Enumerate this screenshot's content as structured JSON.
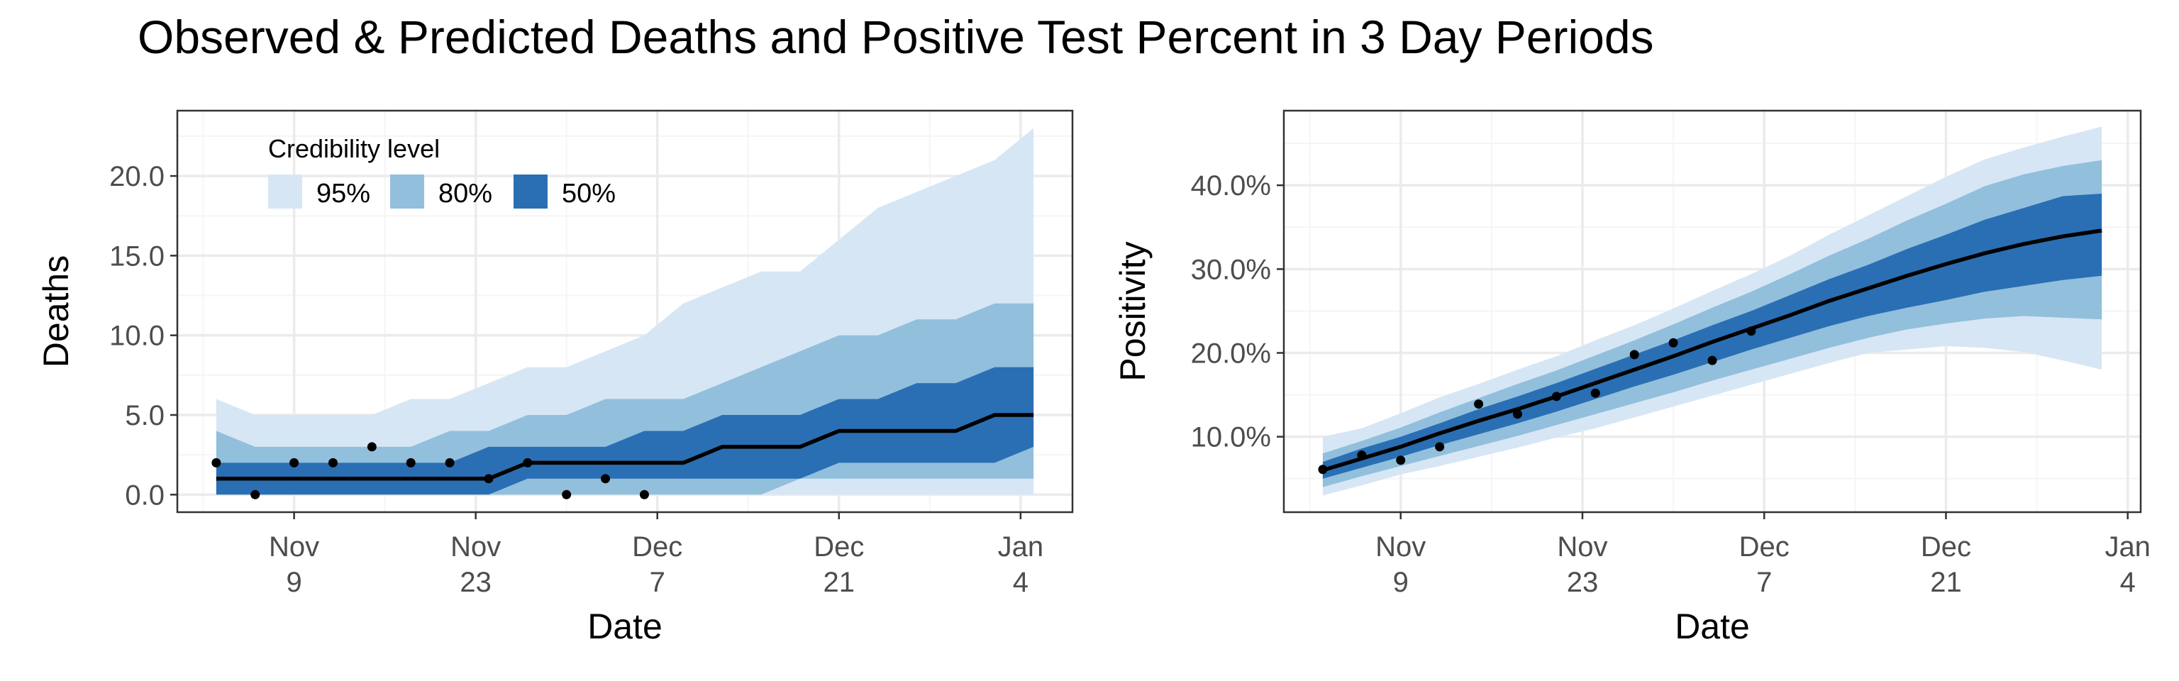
{
  "title": "Observed & Predicted Deaths and Positive Test Percent in 3 Day Periods",
  "colors": {
    "band95": "#d6e6f4",
    "band80": "#92bfdc",
    "band50": "#2a6fb3",
    "median_line": "#000000",
    "points": "#000000",
    "grid_major": "#ebebeb",
    "grid_minor": "#f5f5f5",
    "panel_border": "#333333"
  },
  "legend": {
    "title": "Credibility level",
    "items": [
      {
        "label": "95%",
        "color": "#d6e6f4"
      },
      {
        "label": "80%",
        "color": "#92bfdc"
      },
      {
        "label": "50%",
        "color": "#2a6fb3"
      }
    ]
  },
  "chart_data": [
    {
      "type": "area",
      "xlabel": "Date",
      "ylabel": "Deaths",
      "x_ticks": [
        {
          "date": "2020-11-09",
          "line1": "Nov",
          "line2": "9"
        },
        {
          "date": "2020-11-23",
          "line1": "Nov",
          "line2": "23"
        },
        {
          "date": "2020-12-07",
          "line1": "Dec",
          "line2": "7"
        },
        {
          "date": "2020-12-21",
          "line1": "Dec",
          "line2": "21"
        },
        {
          "date": "2021-01-04",
          "line1": "Jan",
          "line2": "4"
        }
      ],
      "y_ticks": [
        0,
        5,
        10,
        15,
        20
      ],
      "y_tick_labels": [
        "0.0",
        "5.0",
        "10.0",
        "15.0",
        "20.0"
      ],
      "xlim": [
        "2020-10-31",
        "2021-01-08"
      ],
      "ylim": [
        -1.1,
        24.1
      ],
      "grid": true,
      "legend_position": "top-left inside",
      "forecast": {
        "dates": [
          "2020-11-03",
          "2020-11-06",
          "2020-11-09",
          "2020-11-12",
          "2020-11-15",
          "2020-11-18",
          "2020-11-21",
          "2020-11-24",
          "2020-11-27",
          "2020-11-30",
          "2020-12-03",
          "2020-12-06",
          "2020-12-09",
          "2020-12-12",
          "2020-12-15",
          "2020-12-18",
          "2020-12-21",
          "2020-12-24",
          "2020-12-27",
          "2020-12-30",
          "2021-01-02",
          "2021-01-05"
        ],
        "median": [
          1,
          1,
          1,
          1,
          1,
          1,
          1,
          1,
          2,
          2,
          2,
          2,
          2,
          3,
          3,
          3,
          4,
          4,
          4,
          4,
          5,
          5
        ],
        "lower50": [
          0,
          0,
          0,
          0,
          0,
          0,
          0,
          0,
          1,
          1,
          1,
          1,
          1,
          1,
          1,
          1,
          2,
          2,
          2,
          2,
          2,
          3
        ],
        "upper50": [
          2,
          2,
          2,
          2,
          2,
          2,
          2,
          3,
          3,
          3,
          3,
          4,
          4,
          5,
          5,
          5,
          6,
          6,
          7,
          7,
          8,
          8
        ],
        "lower80": [
          0,
          0,
          0,
          0,
          0,
          0,
          0,
          0,
          0,
          0,
          0,
          0,
          0,
          0,
          0,
          1,
          1,
          1,
          1,
          1,
          1,
          1
        ],
        "upper80": [
          4,
          3,
          3,
          3,
          3,
          3,
          4,
          4,
          5,
          5,
          6,
          6,
          6,
          7,
          8,
          9,
          10,
          10,
          11,
          11,
          12,
          12
        ],
        "lower95": [
          0,
          0,
          0,
          0,
          0,
          0,
          0,
          0,
          0,
          0,
          0,
          0,
          0,
          0,
          0,
          0,
          0,
          0,
          0,
          0,
          0,
          0
        ],
        "upper95": [
          6,
          5,
          5,
          5,
          5,
          6,
          6,
          7,
          8,
          8,
          9,
          10,
          12,
          13,
          14,
          14,
          16,
          18,
          19,
          20,
          21,
          23
        ]
      },
      "observed": {
        "dates": [
          "2020-11-03",
          "2020-11-06",
          "2020-11-09",
          "2020-11-12",
          "2020-11-15",
          "2020-11-18",
          "2020-11-21",
          "2020-11-24",
          "2020-11-27",
          "2020-11-30",
          "2020-12-03",
          "2020-12-06"
        ],
        "values": [
          2,
          0,
          2,
          2,
          3,
          2,
          2,
          1,
          2,
          0,
          1,
          0
        ]
      }
    },
    {
      "type": "area",
      "xlabel": "Date",
      "ylabel": "Positivity",
      "x_ticks": [
        {
          "date": "2020-11-09",
          "line1": "Nov",
          "line2": "9"
        },
        {
          "date": "2020-11-23",
          "line1": "Nov",
          "line2": "23"
        },
        {
          "date": "2020-12-07",
          "line1": "Dec",
          "line2": "7"
        },
        {
          "date": "2020-12-21",
          "line1": "Dec",
          "line2": "21"
        },
        {
          "date": "2021-01-04",
          "line1": "Jan",
          "line2": "4"
        }
      ],
      "y_ticks": [
        10,
        20,
        30,
        40
      ],
      "y_tick_labels": [
        "10.0%",
        "20.0%",
        "30.0%",
        "40.0%"
      ],
      "xlim": [
        "2020-10-31",
        "2021-01-05"
      ],
      "ylim": [
        1.0,
        48.9
      ],
      "grid": true,
      "forecast": {
        "dates": [
          "2020-11-03",
          "2020-11-06",
          "2020-11-09",
          "2020-11-12",
          "2020-11-15",
          "2020-11-18",
          "2020-11-21",
          "2020-11-24",
          "2020-11-27",
          "2020-11-30",
          "2020-12-03",
          "2020-12-06",
          "2020-12-09",
          "2020-12-12",
          "2020-12-15",
          "2020-12-18",
          "2020-12-21",
          "2020-12-24",
          "2020-12-27",
          "2020-12-30",
          "2021-01-02"
        ],
        "median": [
          6.0,
          7.4,
          8.8,
          10.4,
          11.9,
          13.3,
          14.8,
          16.4,
          18.0,
          19.6,
          21.3,
          22.9,
          24.5,
          26.2,
          27.7,
          29.2,
          30.6,
          31.9,
          33.0,
          33.9,
          34.6
        ],
        "lower50": [
          5.0,
          6.3,
          7.6,
          9.0,
          10.3,
          11.6,
          13.0,
          14.5,
          16.0,
          17.4,
          18.9,
          20.4,
          21.8,
          23.2,
          24.4,
          25.4,
          26.3,
          27.3,
          28.0,
          28.7,
          29.2
        ],
        "upper50": [
          7.0,
          8.6,
          10.0,
          11.6,
          13.3,
          14.8,
          16.4,
          18.1,
          19.8,
          21.5,
          23.3,
          25.0,
          26.9,
          28.8,
          30.5,
          32.4,
          34.1,
          35.9,
          37.3,
          38.7,
          39.0
        ],
        "lower80": [
          4.0,
          5.3,
          6.5,
          7.7,
          8.9,
          10.1,
          11.4,
          12.7,
          14.0,
          15.3,
          16.7,
          18.0,
          19.3,
          20.6,
          21.8,
          22.8,
          23.5,
          24.1,
          24.4,
          24.2,
          24.0
        ],
        "upper80": [
          8.0,
          9.5,
          11.1,
          12.9,
          14.6,
          16.3,
          17.9,
          19.7,
          21.5,
          23.4,
          25.4,
          27.3,
          29.4,
          31.6,
          33.6,
          35.8,
          37.8,
          39.9,
          41.3,
          42.3,
          43.0
        ],
        "lower95": [
          3.0,
          4.2,
          5.5,
          6.5,
          7.6,
          8.7,
          9.9,
          11.0,
          12.3,
          13.6,
          14.9,
          16.2,
          17.5,
          18.8,
          20.0,
          20.4,
          20.8,
          20.6,
          20.1,
          19.1,
          18.0
        ],
        "upper95": [
          10.0,
          11.0,
          12.8,
          14.7,
          16.3,
          18.0,
          19.6,
          21.5,
          23.3,
          25.3,
          27.4,
          29.4,
          31.6,
          34.1,
          36.4,
          38.7,
          41.0,
          43.1,
          44.5,
          45.8,
          47.0
        ]
      },
      "observed": {
        "dates": [
          "2020-11-03",
          "2020-11-06",
          "2020-11-09",
          "2020-11-12",
          "2020-11-15",
          "2020-11-18",
          "2020-11-21",
          "2020-11-24",
          "2020-11-27",
          "2020-11-30",
          "2020-12-03",
          "2020-12-06"
        ],
        "values": [
          6.1,
          7.8,
          7.2,
          8.8,
          13.9,
          12.7,
          14.8,
          15.2,
          19.8,
          21.2,
          19.1,
          22.6
        ]
      }
    }
  ]
}
